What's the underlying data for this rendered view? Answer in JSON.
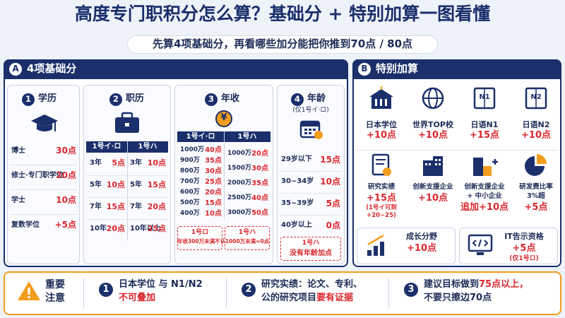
{
  "header": {
    "title": "高度专门职积分怎么算？基础分 + 特别加算一图看懂",
    "subtitle": "先算4项基础分，再看哪些加分能把你推到70点 / 80点"
  },
  "basic": {
    "badge": "A",
    "title": "4项基础分",
    "education": {
      "num": "1",
      "title": "学历",
      "rows": [
        [
          "博士",
          "30点"
        ],
        [
          "修士·专门职学位",
          "20点"
        ],
        [
          "学士",
          "10点"
        ],
        [
          "复数学位",
          "+5点"
        ]
      ]
    },
    "career": {
      "num": "2",
      "title": "职历",
      "headers": [
        "1号イ·ロ",
        "1号ハ"
      ],
      "rows": [
        [
          "3年",
          "5点",
          "3年",
          "10点"
        ],
        [
          "5年",
          "10点",
          "5年",
          "15点"
        ],
        [
          "7年",
          "15点",
          "7年",
          "20点"
        ],
        [
          "10年",
          "20点",
          "10年以上",
          "25点"
        ]
      ]
    },
    "income": {
      "num": "3",
      "title": "年收",
      "icon_text": "¥",
      "headers": [
        "1号イ·ロ",
        "1号ハ"
      ],
      "left_rows": [
        [
          "1000万",
          "40点"
        ],
        [
          "900万",
          "35点"
        ],
        [
          "800万",
          "30点"
        ],
        [
          "700万",
          "25点"
        ],
        [
          "600万",
          "20点"
        ],
        [
          "500万",
          "15点"
        ],
        [
          "400万",
          "10点"
        ]
      ],
      "right_rows": [
        [
          "1000万",
          "20点"
        ],
        [
          "1500万",
          "30点"
        ],
        [
          "2000万",
          "35点"
        ],
        [
          "2500万",
          "40点"
        ],
        [
          "3000万",
          "50点"
        ]
      ],
      "notes": [
        [
          "1号ロ",
          "年收300万未满不认定"
        ],
        [
          "1号ハ",
          "1000万未满=0点"
        ]
      ]
    },
    "age": {
      "num": "4",
      "title": "年龄",
      "subtitle": "(仅1号イ·ロ)",
      "rows": [
        [
          "29岁以下",
          "15点"
        ],
        [
          "30~34岁",
          "10点"
        ],
        [
          "35~39岁",
          "5点"
        ],
        [
          "40岁以上",
          "0点"
        ]
      ],
      "note": [
        "1号ハ",
        "没有年龄加点"
      ]
    }
  },
  "bonus": {
    "badge": "B",
    "title": "特别加算",
    "items": [
      {
        "label": [
          "日本学位"
        ],
        "points": "+10点"
      },
      {
        "label": [
          "世界TOP校"
        ],
        "points": "+10点"
      },
      {
        "label": [
          "日语N1"
        ],
        "points": "+15点",
        "icon_text": "N1"
      },
      {
        "label": [
          "日语N2"
        ],
        "points": "+10点",
        "icon_text": "N2"
      },
      {
        "label": [
          "研究实绩"
        ],
        "points": "+15点",
        "note": [
          "(1号イ可到",
          "+20~25)"
        ]
      },
      {
        "label": [
          "创新支援企业"
        ],
        "points": "+10点"
      },
      {
        "label": [
          "创新支援企业",
          "+ 中小企业"
        ],
        "points": "追加+10点"
      },
      {
        "label": [
          "研发费比率",
          "3%超"
        ],
        "points": "+5点"
      }
    ],
    "wide": [
      {
        "label": "成长分野",
        "points": "+10点"
      },
      {
        "label": "IT告示资格",
        "points": "+5点",
        "note": "(仅1号ロ)"
      }
    ]
  },
  "notice": {
    "title": [
      "重要",
      "注意"
    ],
    "items": [
      {
        "num": "1",
        "lines": [
          [
            {
              "text": "日本学位 与 N1/N2",
              "em": false
            }
          ],
          [
            {
              "text": "不可叠加",
              "em": true
            }
          ]
        ]
      },
      {
        "num": "2",
        "lines": [
          [
            {
              "text": "研究实绩：论文、专利、",
              "em": false
            }
          ],
          [
            {
              "text": "公的研究项目",
              "em": false
            },
            {
              "text": "要有证据",
              "em": true
            }
          ]
        ]
      },
      {
        "num": "3",
        "lines": [
          [
            {
              "text": "建议目标做到",
              "em": false
            },
            {
              "text": "75点以上，",
              "em": true
            }
          ],
          [
            {
              "text": "不要只擦边70点",
              "em": false
            }
          ]
        ]
      }
    ]
  }
}
